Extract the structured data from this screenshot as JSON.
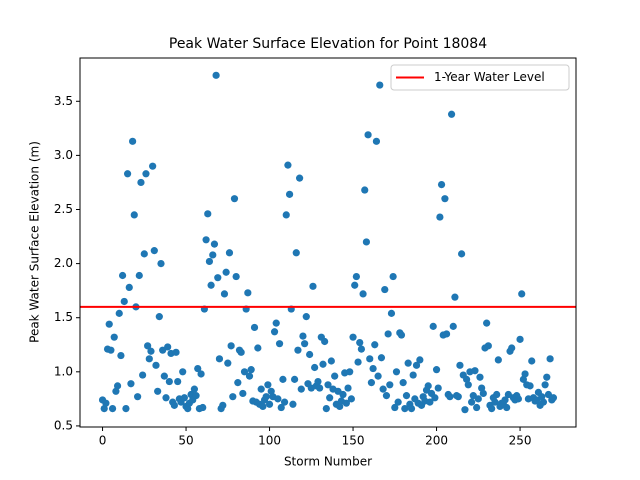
{
  "chart_data": {
    "type": "scatter",
    "title": "Peak Water Surface Elevation for Point 18084",
    "xlabel": "Storm Number",
    "ylabel": "Peak Water Surface Elevation (m)",
    "color": "#1f77b4",
    "xlim": [
      -13.5,
      283.5
    ],
    "ylim": [
      0.49,
      3.9
    ],
    "xticks": [
      0,
      50,
      100,
      150,
      200,
      250
    ],
    "yticks": [
      0.5,
      {
        "value": 1.0,
        "label": "1.0"
      },
      1.5,
      {
        "value": 2.0,
        "label": "2.0"
      },
      2.5,
      {
        "value": 3.0,
        "label": "3.0"
      },
      3.5
    ],
    "legend_position": "upper right",
    "reference_line": {
      "name": "1-Year Water Level",
      "value": 1.6,
      "color": "#ff0000"
    },
    "x": [
      0,
      1,
      2,
      3,
      4,
      5,
      6,
      7,
      8,
      9,
      10,
      11,
      12,
      13,
      14,
      15,
      16,
      17,
      18,
      19,
      20,
      21,
      22,
      23,
      24,
      25,
      26,
      27,
      28,
      29,
      30,
      31,
      32,
      33,
      34,
      35,
      36,
      37,
      38,
      39,
      40,
      41,
      42,
      43,
      44,
      45,
      46,
      47,
      48,
      49,
      50,
      51,
      52,
      53,
      54,
      55,
      56,
      57,
      58,
      59,
      60,
      61,
      62,
      63,
      64,
      65,
      66,
      67,
      68,
      69,
      70,
      71,
      72,
      73,
      74,
      75,
      76,
      77,
      78,
      79,
      80,
      81,
      82,
      83,
      84,
      85,
      86,
      87,
      88,
      89,
      90,
      91,
      92,
      93,
      94,
      95,
      96,
      97,
      98,
      99,
      100,
      101,
      102,
      103,
      104,
      105,
      106,
      107,
      108,
      109,
      110,
      111,
      112,
      113,
      114,
      115,
      116,
      117,
      118,
      119,
      120,
      121,
      122,
      123,
      124,
      125,
      126,
      127,
      128,
      129,
      130,
      131,
      132,
      133,
      134,
      135,
      136,
      137,
      138,
      139,
      140,
      141,
      142,
      143,
      144,
      145,
      146,
      147,
      148,
      149,
      150,
      151,
      152,
      153,
      154,
      155,
      156,
      157,
      158,
      159,
      160,
      161,
      162,
      163,
      164,
      165,
      166,
      167,
      168,
      169,
      170,
      171,
      172,
      173,
      174,
      175,
      176,
      177,
      178,
      179,
      180,
      181,
      182,
      183,
      184,
      185,
      186,
      187,
      188,
      189,
      190,
      191,
      192,
      193,
      194,
      195,
      196,
      197,
      198,
      199,
      200,
      201,
      202,
      203,
      204,
      205,
      206,
      207,
      208,
      209,
      210,
      211,
      212,
      213,
      214,
      215,
      216,
      217,
      218,
      219,
      220,
      221,
      222,
      223,
      224,
      225,
      226,
      227,
      228,
      229,
      230,
      231,
      232,
      233,
      234,
      235,
      236,
      237,
      238,
      239,
      240,
      241,
      242,
      243,
      244,
      245,
      246,
      247,
      248,
      249,
      250,
      251,
      252,
      253,
      254,
      255,
      256,
      257,
      258,
      259,
      260,
      261,
      262,
      263,
      264,
      265,
      266,
      267,
      268,
      269,
      270
    ],
    "values": [
      0.74,
      0.66,
      0.71,
      1.21,
      1.44,
      1.2,
      0.66,
      1.32,
      0.82,
      0.87,
      1.54,
      1.15,
      1.89,
      1.65,
      0.66,
      2.83,
      1.78,
      0.89,
      3.13,
      2.45,
      1.6,
      0.77,
      1.89,
      2.75,
      0.97,
      2.09,
      2.83,
      1.24,
      1.12,
      1.19,
      2.9,
      2.12,
      1.06,
      0.82,
      1.51,
      2.0,
      1.2,
      0.96,
      0.76,
      1.23,
      0.91,
      1.17,
      0.72,
      0.69,
      1.18,
      0.91,
      0.75,
      0.72,
      1.0,
      0.76,
      0.68,
      0.66,
      0.71,
      0.79,
      0.74,
      0.84,
      0.78,
      1.03,
      0.66,
      0.98,
      0.67,
      1.58,
      2.22,
      2.46,
      2.02,
      1.8,
      2.08,
      2.18,
      3.74,
      1.87,
      1.12,
      0.66,
      0.69,
      1.72,
      1.92,
      1.08,
      2.1,
      1.24,
      0.77,
      2.6,
      1.88,
      0.9,
      1.2,
      1.18,
      0.8,
      1.0,
      1.58,
      1.73,
      0.96,
      1.02,
      0.73,
      1.41,
      0.72,
      1.22,
      0.7,
      0.84,
      0.68,
      0.74,
      0.77,
      0.88,
      0.7,
      0.82,
      0.77,
      1.37,
      1.45,
      0.75,
      1.26,
      0.67,
      0.93,
      0.72,
      2.45,
      2.91,
      2.64,
      1.58,
      0.7,
      0.93,
      2.1,
      1.2,
      2.79,
      0.84,
      1.33,
      1.26,
      1.51,
      0.89,
      1.16,
      0.85,
      1.79,
      1.04,
      0.87,
      0.91,
      0.85,
      1.32,
      1.07,
      1.28,
      0.66,
      0.88,
      0.76,
      1.1,
      0.84,
      0.96,
      0.7,
      0.82,
      0.68,
      0.73,
      0.79,
      0.99,
      0.71,
      0.85,
      1.0,
      0.75,
      1.32,
      1.8,
      1.88,
      1.09,
      1.27,
      1.21,
      1.72,
      2.68,
      2.2,
      3.19,
      1.12,
      0.9,
      1.03,
      1.25,
      3.13,
      0.96,
      3.65,
      1.13,
      0.84,
      1.76,
      0.78,
      1.35,
      0.88,
      1.54,
      1.88,
      0.67,
      1.0,
      0.72,
      1.36,
      1.34,
      0.9,
      0.66,
      0.78,
      1.08,
      0.7,
      0.66,
      0.97,
      0.75,
      1.06,
      0.71,
      1.11,
      0.69,
      0.77,
      0.73,
      0.83,
      0.87,
      0.72,
      0.8,
      1.42,
      0.76,
      1.02,
      0.85,
      2.43,
      2.73,
      1.34,
      2.6,
      1.35,
      0.79,
      0.77,
      3.38,
      1.42,
      1.69,
      0.78,
      0.77,
      1.06,
      2.09,
      0.97,
      0.65,
      0.93,
      0.88,
      1.0,
      0.72,
      0.78,
      1.01,
      0.67,
      0.75,
      0.95,
      0.85,
      0.8,
      1.22,
      1.45,
      1.24,
      0.69,
      0.66,
      0.76,
      0.72,
      0.79,
      1.11,
      0.68,
      0.71,
      0.7,
      0.74,
      0.67,
      0.79,
      1.19,
      1.22,
      0.76,
      0.74,
      0.78,
      0.75,
      1.3,
      1.72,
      0.93,
      0.98,
      0.88,
      0.75,
      0.87,
      1.1,
      0.76,
      0.73,
      0.74,
      0.81,
      0.69,
      0.77,
      0.72,
      0.88,
      0.95,
      0.79,
      1.12,
      0.74,
      0.76
    ]
  }
}
